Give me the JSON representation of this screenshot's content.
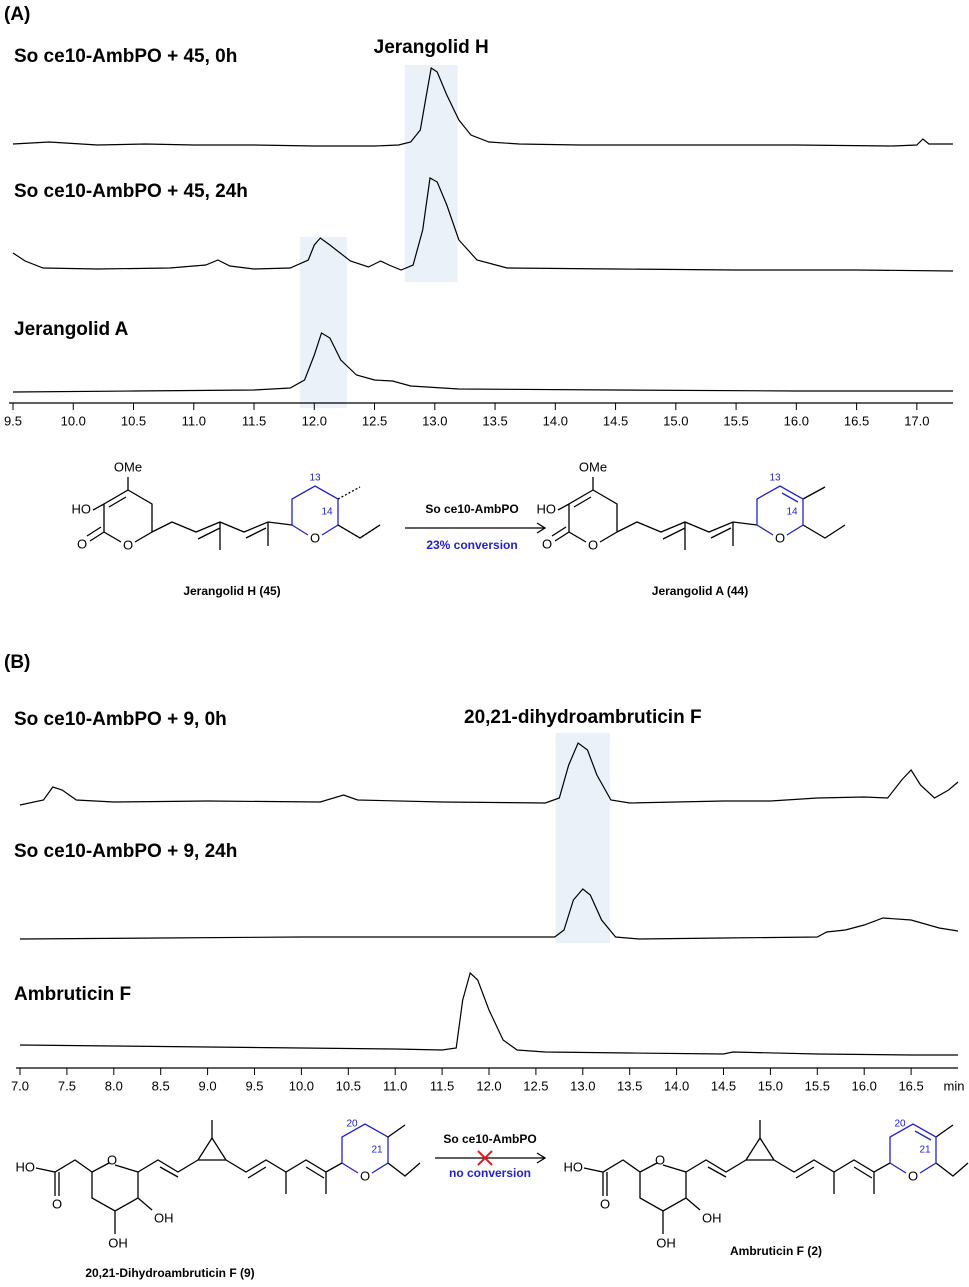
{
  "chart_data": [
    {
      "type": "line",
      "panel_label": "(A)",
      "xlim": [
        9.5,
        17.3
      ],
      "ylim": [
        0,
        100
      ],
      "xticks": [
        9.5,
        {
          "value": 10,
          "label": "10.0"
        },
        10.5,
        {
          "value": 11,
          "label": "11.0"
        },
        11.5,
        {
          "value": 12,
          "label": "12.0"
        },
        12.5,
        {
          "value": 13,
          "label": "13.0"
        },
        13.5,
        {
          "value": 14,
          "label": "14.0"
        },
        14.5,
        {
          "value": 15,
          "label": "15.0"
        },
        15.5,
        {
          "value": 16,
          "label": "16.0"
        },
        16.5,
        {
          "value": 17,
          "label": "17.0"
        }
      ],
      "highlights": [
        {
          "label": "Jerangolid H",
          "xlim": [
            12.75,
            13.19
          ]
        },
        {
          "xlim": [
            11.88,
            12.27
          ]
        }
      ],
      "series": [
        {
          "name": "So ce10-AmbPO + 45, 0h",
          "color": "#000000",
          "x": [
            9.5,
            9.8,
            10.2,
            10.6,
            11.0,
            11.5,
            12.0,
            12.5,
            12.7,
            12.8,
            12.88,
            12.93,
            12.97,
            13.02,
            13.1,
            13.2,
            13.3,
            13.45,
            13.7,
            14.2,
            15.0,
            16.0,
            16.8,
            17.0,
            17.05,
            17.1,
            17.3
          ],
          "values": [
            6,
            8,
            5,
            6,
            5,
            5,
            4,
            4,
            5,
            8,
            20,
            55,
            82,
            78,
            55,
            30,
            15,
            8,
            6,
            5,
            5,
            5,
            4,
            5,
            11,
            6,
            6
          ]
        },
        {
          "name": "So ce10-AmbPO + 45, 24h",
          "color": "#000000",
          "x": [
            9.5,
            9.6,
            9.75,
            10.2,
            10.8,
            11.0,
            11.1,
            11.2,
            11.3,
            11.5,
            11.8,
            11.95,
            12.0,
            12.05,
            12.13,
            12.3,
            12.45,
            12.55,
            12.62,
            12.72,
            12.82,
            12.9,
            12.96,
            13.02,
            13.1,
            13.2,
            13.35,
            13.6,
            14.5,
            15.5,
            16.5,
            17.3
          ],
          "values": [
            22,
            14,
            7,
            6,
            7,
            9,
            10,
            15,
            9,
            6,
            7,
            15,
            30,
            37,
            30,
            14,
            8,
            14,
            10,
            5,
            10,
            45,
            97,
            93,
            70,
            35,
            15,
            7,
            6,
            5,
            5,
            4
          ]
        },
        {
          "name": "Jerangolid A",
          "color": "#000000",
          "x": [
            9.5,
            10.5,
            11.5,
            11.8,
            11.92,
            12.0,
            12.06,
            12.13,
            12.22,
            12.35,
            12.5,
            12.65,
            12.8,
            13.2,
            14.5,
            16.0,
            17.3
          ],
          "values": [
            3,
            4,
            5,
            7,
            15,
            40,
            62,
            57,
            35,
            20,
            15,
            14,
            9,
            6,
            5,
            4,
            4
          ]
        }
      ]
    },
    {
      "type": "line",
      "panel_label": "(B)",
      "xlim": [
        7.0,
        17.0
      ],
      "ylim": [
        0,
        100
      ],
      "xlabel": "min",
      "xticks": [
        {
          "value": 7,
          "label": "7.0"
        },
        7.5,
        {
          "value": 8,
          "label": "8.0"
        },
        8.5,
        {
          "value": 9,
          "label": "9.0"
        },
        9.5,
        {
          "value": 10,
          "label": "10.0"
        },
        10.5,
        {
          "value": 11,
          "label": "11.0"
        },
        11.5,
        {
          "value": 12,
          "label": "12.0"
        },
        12.5,
        {
          "value": 13,
          "label": "13.0"
        },
        13.5,
        {
          "value": 14,
          "label": "14.0"
        },
        14.5,
        {
          "value": 15,
          "label": "15.0"
        },
        15.5,
        {
          "value": 16,
          "label": "16.0"
        },
        16.5
      ],
      "highlights": [
        {
          "label": "20,21-dihydroambruticin F",
          "xlim": [
            12.71,
            13.29
          ]
        }
      ],
      "series": [
        {
          "name": "So ce10-AmbPO + 9, 0h",
          "color": "#000000",
          "x": [
            7.0,
            7.25,
            7.35,
            7.45,
            7.6,
            8.0,
            9.0,
            10.2,
            10.45,
            10.6,
            11.5,
            12.6,
            12.75,
            12.85,
            12.95,
            13.05,
            13.15,
            13.3,
            13.5,
            14.5,
            15.0,
            15.5,
            16.0,
            16.25,
            16.4,
            16.5,
            16.6,
            16.75,
            16.9,
            17.0
          ],
          "values": [
            5,
            10,
            23,
            20,
            10,
            8,
            9,
            8,
            15,
            10,
            8,
            7,
            12,
            45,
            67,
            60,
            35,
            10,
            7,
            9,
            9,
            12,
            13,
            12,
            30,
            40,
            25,
            12,
            20,
            28
          ]
        },
        {
          "name": "So ce10-AmbPO + 9, 24h",
          "color": "#000000",
          "x": [
            7.0,
            8.5,
            10.0,
            12.0,
            12.7,
            12.8,
            12.9,
            13.0,
            13.08,
            13.2,
            13.35,
            13.6,
            14.5,
            15.5,
            15.6,
            15.8,
            16.0,
            16.2,
            16.5,
            16.8,
            17.0
          ],
          "values": [
            6,
            7,
            8,
            8,
            8,
            15,
            45,
            56,
            50,
            25,
            8,
            6,
            7,
            8,
            13,
            15,
            20,
            27,
            25,
            17,
            14
          ]
        },
        {
          "name": "Ambruticin F",
          "color": "#000000",
          "x": [
            7.0,
            8.0,
            9.0,
            10.0,
            11.0,
            11.5,
            11.65,
            11.72,
            11.8,
            11.88,
            12.0,
            12.15,
            12.3,
            12.6,
            13.5,
            14.5,
            14.6,
            15.5,
            16.5,
            17.0
          ],
          "values": [
            15,
            14,
            13,
            12,
            11,
            10,
            12,
            60,
            87,
            80,
            50,
            20,
            10,
            8,
            7,
            6,
            8,
            6,
            5,
            5
          ]
        }
      ]
    }
  ],
  "schemes": [
    {
      "reactant": {
        "name": "Jerangolid H (45)",
        "atoms": [
          "OMe",
          "HO",
          "O",
          "O",
          "O",
          "13",
          "14"
        ]
      },
      "enzyme": "So ce10-AmbPO",
      "result": "23% conversion",
      "product": {
        "name": "Jerangolid A (44)",
        "atoms": [
          "OMe",
          "HO",
          "O",
          "O",
          "O",
          "13",
          "14"
        ]
      }
    },
    {
      "reactant": {
        "name": "20,21-Dihydroambruticin F (9)",
        "atoms": [
          "HO",
          "O",
          "O",
          "OH",
          "OH",
          "O",
          "20",
          "21"
        ]
      },
      "enzyme": "So ce10-AmbPO",
      "result": "no conversion",
      "product": {
        "name": "Ambruticin F (2)",
        "atoms": [
          "HO",
          "O",
          "O",
          "OH",
          "OH",
          "O",
          "20",
          "21"
        ]
      }
    }
  ]
}
